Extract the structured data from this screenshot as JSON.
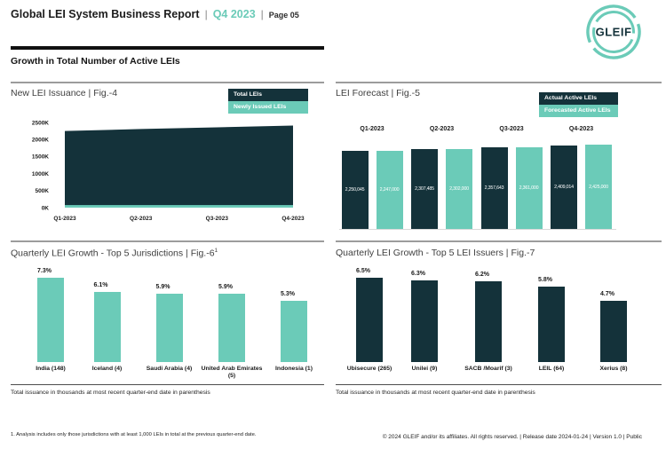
{
  "header": {
    "title": "Global LEI System Business Report",
    "divider": "|",
    "period": "Q4 2023",
    "page_label": "Page 05",
    "logo_text": "GLEIF"
  },
  "section_title": "Growth in Total Number of Active LEIs",
  "colors": {
    "dark_teal": "#14323A",
    "teal": "#6BCBB8"
  },
  "chart_data": [
    {
      "id": "new-lei-issuance",
      "type": "area",
      "title": "New LEI Issuance | Fig.-4",
      "x": [
        "Q1-2023",
        "Q2-2023",
        "Q3-2023",
        "Q4-2023"
      ],
      "series": [
        {
          "name": "Total LEIs",
          "color": "#14323A",
          "values": [
            2250045,
            2307485,
            2357643,
            2409014
          ]
        },
        {
          "name": "Newly Issued LEIs",
          "color": "#6BCBB8",
          "values": [
            75000,
            75000,
            75000,
            75000
          ],
          "estimated": true
        }
      ],
      "ylim": [
        0,
        2500000
      ],
      "ytick_labels": [
        "2500K",
        "2000K",
        "1500K",
        "1000K",
        "500K",
        "0K"
      ],
      "legend_position": "top-right",
      "grid": false
    },
    {
      "id": "lei-forecast",
      "type": "bar",
      "title": "LEI Forecast | Fig.-5",
      "categories": [
        "Q1-2023",
        "Q2-2023",
        "Q3-2023",
        "Q4-2023"
      ],
      "series": [
        {
          "name": "Actual Active LEIs",
          "color": "#14323A",
          "values": [
            2250045,
            2307485,
            2357643,
            2409014
          ],
          "data_labels": [
            "2,250,045",
            "2,307,485",
            "2,357,643",
            "2,409,014"
          ]
        },
        {
          "name": "Forecasted Active LEIs",
          "color": "#6BCBB8",
          "values": [
            2247000,
            2302000,
            2361000,
            2425000
          ],
          "data_labels": [
            "2,247,000",
            "2,302,000",
            "2,361,000",
            "2,425,000"
          ]
        }
      ],
      "legend_position": "top-right"
    },
    {
      "id": "growth-top5-jurisdictions",
      "type": "bar",
      "title": "Quarterly LEI Growth - Top 5 Jurisdictions | Fig.-6",
      "title_footnote_marker": "1",
      "categories": [
        "India (148)",
        "Iceland (4)",
        "Saudi Arabia (4)",
        "United Arab Emirates (5)",
        "Indonesia (1)"
      ],
      "values": [
        7.3,
        6.1,
        5.9,
        5.9,
        5.3
      ],
      "data_labels": [
        "7.3%",
        "6.1%",
        "5.9%",
        "5.9%",
        "5.3%"
      ],
      "bar_color": "#6BCBB8",
      "note": "Total issuance in thousands at most recent quarter-end date in parenthesis"
    },
    {
      "id": "growth-top5-issuers",
      "type": "bar",
      "title": "Quarterly LEI Growth - Top 5 LEI Issuers | Fig.-7",
      "categories": [
        "Ubisecure (265)",
        "Unilei (9)",
        "SACB /Moarif (3)",
        "LEIL (64)",
        "Xerius (8)"
      ],
      "values": [
        6.5,
        6.3,
        6.2,
        5.8,
        4.7
      ],
      "data_labels": [
        "6.5%",
        "6.3%",
        "6.2%",
        "5.8%",
        "4.7%"
      ],
      "bar_color": "#14323A",
      "note": "Total issuance in thousands at most recent quarter-end date in parenthesis"
    }
  ],
  "footer": {
    "footnote": "1. Analysis includes only those jurisdictions with at least 1,000 LEIs in total at the previous quarter-end date.",
    "copyright": "© 2024 GLEIF and/or its affiliates. All rights reserved.  | Release date 2024-01-24 | Version 1.0 | Public"
  }
}
